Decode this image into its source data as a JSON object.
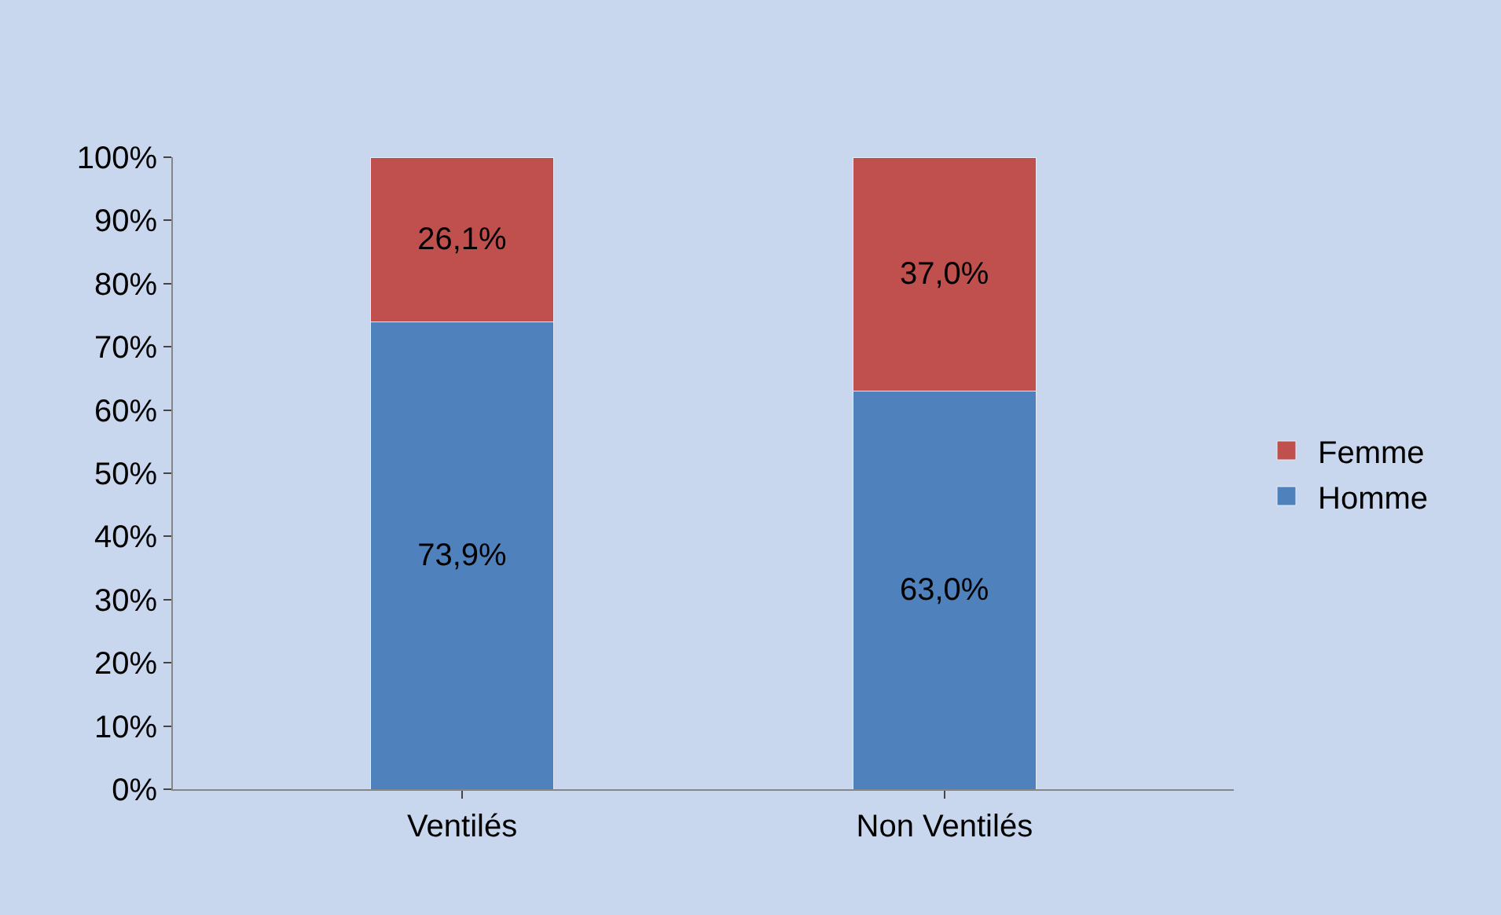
{
  "chart_data": {
    "type": "bar",
    "stacked": true,
    "categories": [
      "Ventilés",
      "Non Ventilés"
    ],
    "series": [
      {
        "name": "Homme",
        "color": "#4f81bd",
        "values": [
          73.9,
          63.0
        ],
        "value_labels": [
          "73,9%",
          "63,0%"
        ]
      },
      {
        "name": "Femme",
        "color": "#c0504d",
        "values": [
          26.1,
          37.0
        ],
        "value_labels": [
          "26,1%",
          "37,0%"
        ]
      }
    ],
    "ylim": [
      0,
      100
    ],
    "yticks": [
      {
        "value": 0,
        "label": "0%"
      },
      {
        "value": 10,
        "label": "10%"
      },
      {
        "value": 20,
        "label": "20%"
      },
      {
        "value": 30,
        "label": "30%"
      },
      {
        "value": 40,
        "label": "40%"
      },
      {
        "value": 50,
        "label": "50%"
      },
      {
        "value": 60,
        "label": "60%"
      },
      {
        "value": 70,
        "label": "70%"
      },
      {
        "value": 80,
        "label": "80%"
      },
      {
        "value": 90,
        "label": "90%"
      },
      {
        "value": 100,
        "label": "100%"
      }
    ],
    "grid": false,
    "legend": "right"
  }
}
